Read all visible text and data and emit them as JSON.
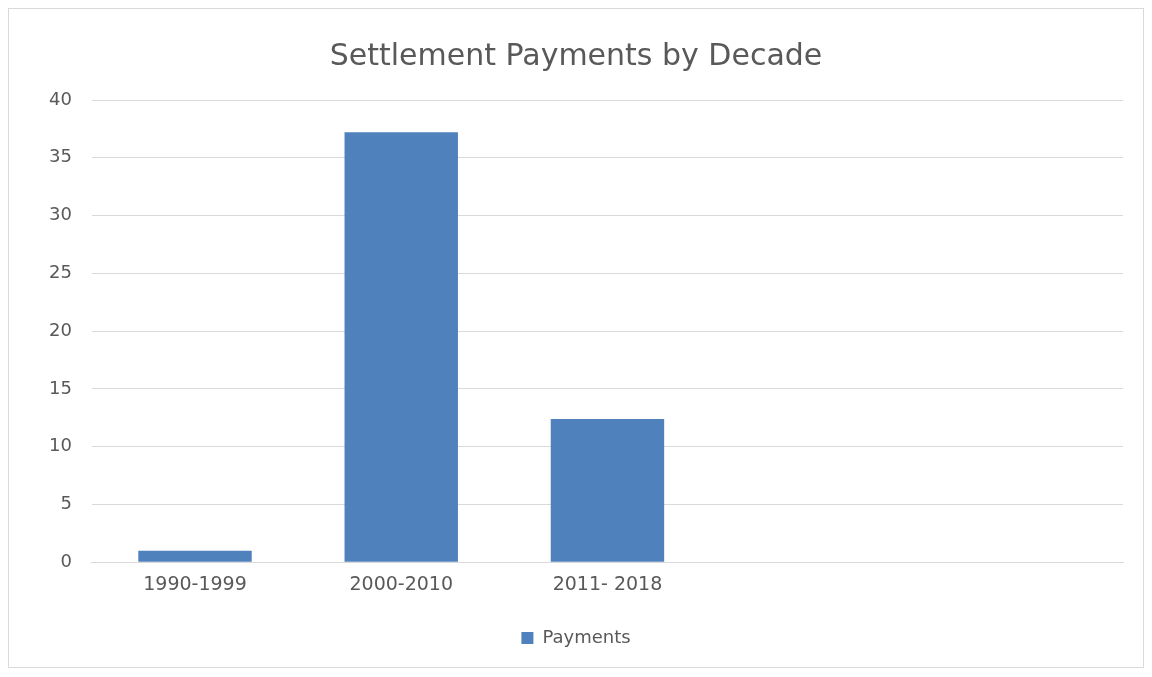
{
  "chart_data": {
    "type": "bar",
    "title": "Settlement Payments by Decade",
    "categories": [
      "1990-1999",
      "2000-2010",
      "2011- 2018",
      null,
      null
    ],
    "series": [
      {
        "name": "Payments",
        "color": "#4f81bd",
        "values": [
          1,
          37.2,
          12.4,
          null,
          null
        ]
      }
    ],
    "ylim": [
      0,
      40
    ],
    "yticks": [
      0,
      5,
      10,
      15,
      20,
      25,
      30,
      35,
      40
    ],
    "grid": "y",
    "legend": "bottom"
  }
}
